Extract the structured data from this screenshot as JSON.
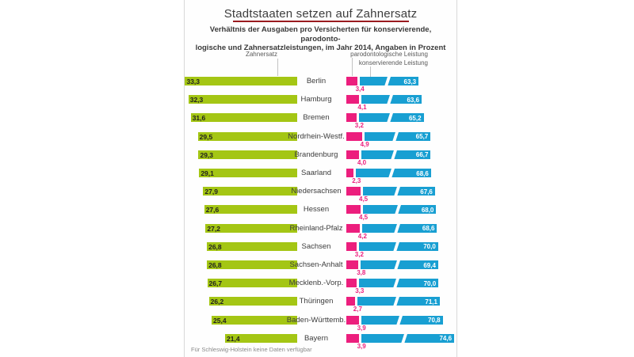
{
  "header": {
    "title": "Stadtstaaten setzen auf Zahnersatz",
    "subtitle_line1": "Verhältnis der Ausgaben pro Versicherten für konservierende, parodonto-",
    "subtitle_line2": "logische und Zahnersatzleistungen, im Jahr 2014, Angaben in Prozent"
  },
  "legend": {
    "zahnersatz_label": "Zahnersatz",
    "parodontologisch_label": "parodontologische Leistung",
    "konservierend_label": "konservierende Leistung"
  },
  "footnote": "Für Schleswig-Holstein keine Daten verfügbar",
  "colors": {
    "green": "#a4c614",
    "pink": "#ec1e7d",
    "blue": "#189fd2",
    "title_rule": "#9a1b1f"
  },
  "chart_data": {
    "type": "bar",
    "orientation": "horizontal",
    "unit": "percent",
    "decimal_separator": ",",
    "title": "Stadtstaaten setzen auf Zahnersatz",
    "categories": [
      "Berlin",
      "Hamburg",
      "Bremen",
      "Nordrhein-Westf.",
      "Brandenburg",
      "Saarland",
      "Niedersachsen",
      "Hessen",
      "Rheinland-Pfalz",
      "Sachsen",
      "Sachsen-Anhalt",
      "Mecklenb.-Vorp.",
      "Thüringen",
      "Baden-Württemb.",
      "Bayern"
    ],
    "series": [
      {
        "name": "Zahnersatz",
        "color": "#a4c614",
        "values": [
          33.3,
          32.3,
          31.6,
          29.5,
          29.3,
          29.1,
          27.9,
          27.6,
          27.2,
          26.8,
          26.8,
          26.7,
          26.2,
          25.4,
          21.4
        ]
      },
      {
        "name": "parodontologische Leistung",
        "color": "#ec1e7d",
        "values": [
          3.4,
          4.1,
          3.2,
          4.9,
          4.0,
          2.3,
          4.5,
          4.5,
          4.2,
          3.2,
          3.8,
          3.3,
          2.7,
          3.9,
          3.9
        ]
      },
      {
        "name": "konservierende Leistung",
        "color": "#189fd2",
        "values": [
          63.3,
          63.6,
          65.2,
          65.7,
          66.7,
          68.6,
          67.6,
          68.0,
          68.6,
          70.0,
          69.4,
          70.0,
          71.1,
          70.8,
          74.6
        ]
      }
    ],
    "notes": "blue bars drawn with a diagonal break (truncated axis)"
  }
}
